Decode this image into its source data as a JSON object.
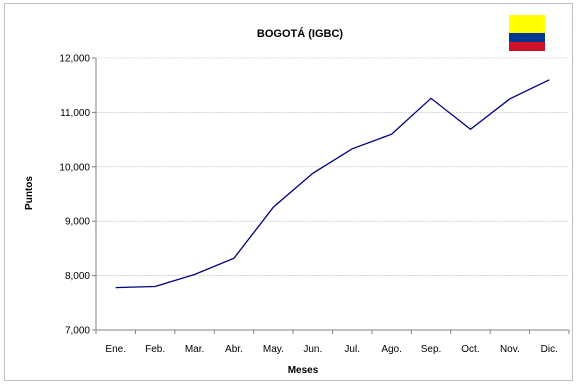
{
  "chart_data": {
    "type": "line",
    "title": "BOGOTÁ (IGBC)",
    "xlabel": "Meses",
    "ylabel": "Puntos",
    "categories": [
      "Ene.",
      "Feb.",
      "Mar.",
      "Abr.",
      "May.",
      "Jun.",
      "Jul.",
      "Ago.",
      "Sep.",
      "Oct.",
      "Nov.",
      "Dic."
    ],
    "series": [
      {
        "values": [
          7780,
          7800,
          8020,
          8320,
          9260,
          9880,
          10330,
          10600,
          11260,
          10690,
          11250,
          11600
        ]
      }
    ],
    "ylim": [
      7000,
      12000
    ],
    "yticks": [
      7000,
      8000,
      9000,
      10000,
      11000,
      12000
    ],
    "ytick_labels": [
      "7,000",
      "8,000",
      "9,000",
      "10,000",
      "11,000",
      "12,000"
    ],
    "grid": true,
    "legend": "none",
    "line_color": "#000080",
    "flag_colors": [
      "#ffff00",
      "#003893",
      "#ce1126"
    ]
  }
}
